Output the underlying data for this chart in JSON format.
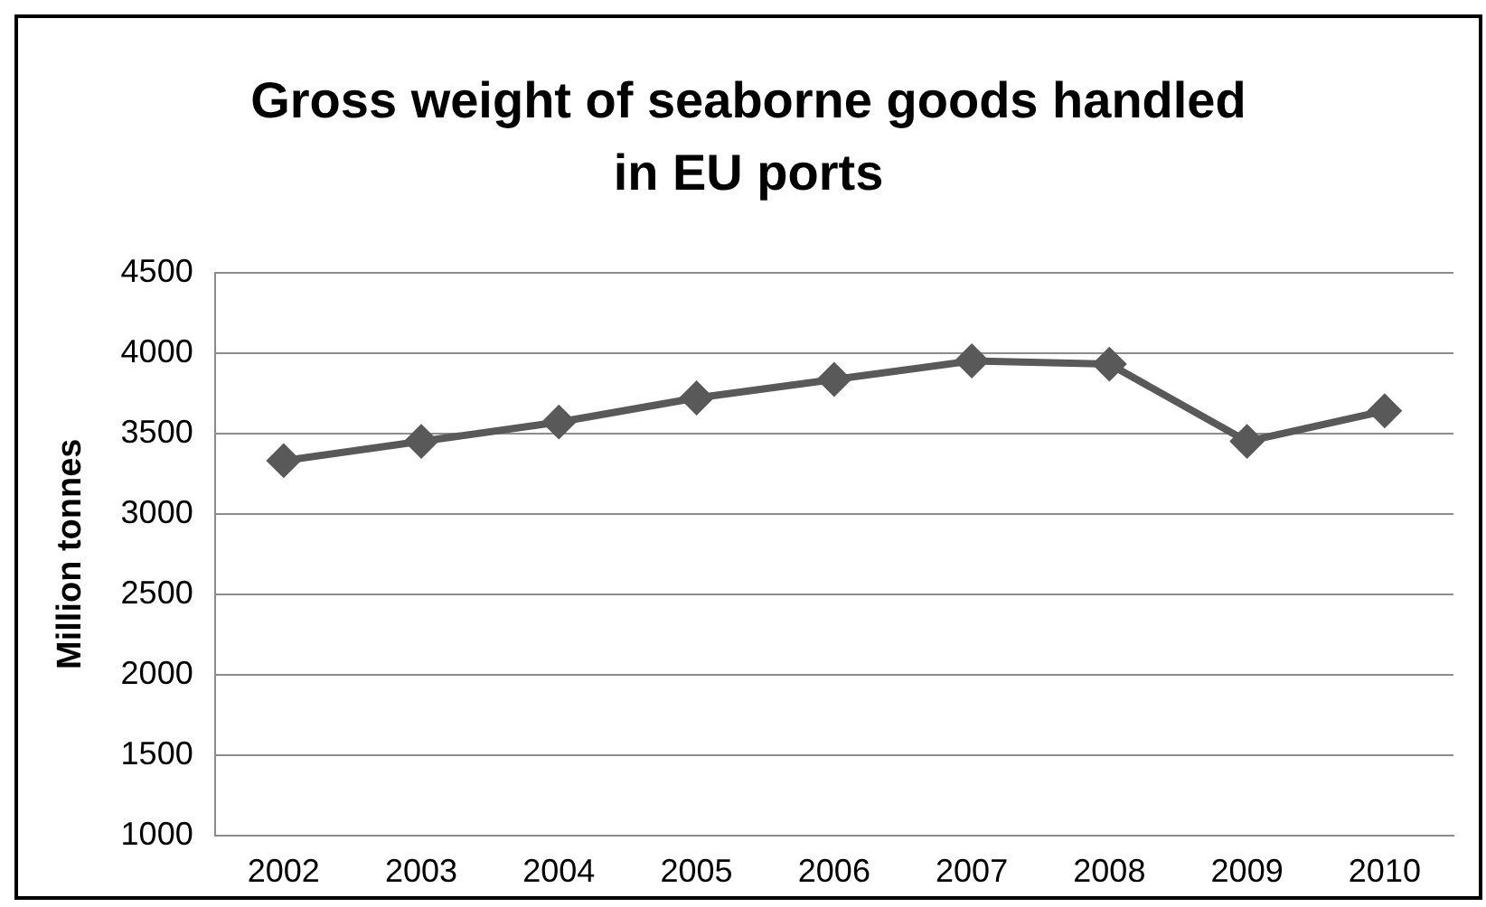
{
  "chart_data": {
    "type": "line",
    "title": "Gross weight of seaborne goods handled in EU ports",
    "ylabel": "Million tonnes",
    "categories": [
      "2002",
      "2003",
      "2004",
      "2005",
      "2006",
      "2007",
      "2008",
      "2009",
      "2010"
    ],
    "series": [
      {
        "color": "#595959",
        "values": [
          3330,
          3450,
          3570,
          3720,
          3835,
          3950,
          3930,
          3450,
          3640
        ]
      }
    ],
    "ylim": [
      1000,
      4500
    ],
    "yticks": [
      1000,
      1500,
      2000,
      2500,
      3000,
      3500,
      4000,
      4500
    ],
    "grid": "y",
    "legend": false,
    "marker": "diamond",
    "line_style": "solid"
  }
}
